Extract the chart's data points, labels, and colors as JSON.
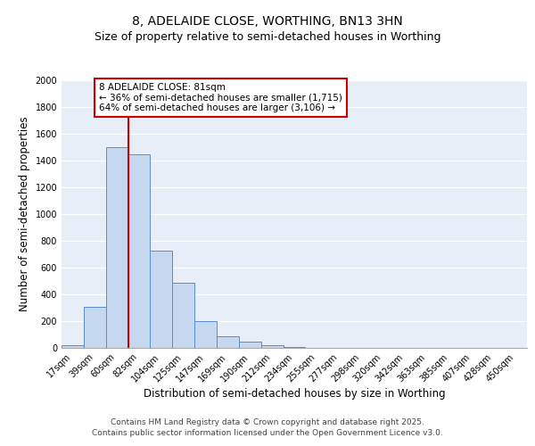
{
  "title_line1": "8, ADELAIDE CLOSE, WORTHING, BN13 3HN",
  "title_line2": "Size of property relative to semi-detached houses in Worthing",
  "xlabel": "Distribution of semi-detached houses by size in Worthing",
  "ylabel": "Number of semi-detached properties",
  "categories": [
    "17sqm",
    "39sqm",
    "60sqm",
    "82sqm",
    "104sqm",
    "125sqm",
    "147sqm",
    "169sqm",
    "190sqm",
    "212sqm",
    "234sqm",
    "255sqm",
    "277sqm",
    "298sqm",
    "320sqm",
    "342sqm",
    "363sqm",
    "385sqm",
    "407sqm",
    "428sqm",
    "450sqm"
  ],
  "values": [
    20,
    310,
    1500,
    1450,
    725,
    485,
    200,
    90,
    50,
    20,
    10,
    0,
    0,
    0,
    0,
    0,
    0,
    0,
    0,
    0,
    0
  ],
  "bar_color": "#c5d8f0",
  "bar_edge_color": "#5b8dc8",
  "vline_x_index": 2.5,
  "vline_color": "#cc0000",
  "annotation_text": "8 ADELAIDE CLOSE: 81sqm\n← 36% of semi-detached houses are smaller (1,715)\n64% of semi-detached houses are larger (3,106) →",
  "annotation_box_color": "#ffffff",
  "annotation_box_edge_color": "#cc0000",
  "ylim": [
    0,
    2000
  ],
  "yticks": [
    0,
    200,
    400,
    600,
    800,
    1000,
    1200,
    1400,
    1600,
    1800,
    2000
  ],
  "background_color": "#e8eef8",
  "grid_color": "#ffffff",
  "footer_line1": "Contains HM Land Registry data © Crown copyright and database right 2025.",
  "footer_line2": "Contains public sector information licensed under the Open Government Licence v3.0.",
  "title_fontsize": 10,
  "subtitle_fontsize": 9,
  "axis_label_fontsize": 8.5,
  "tick_fontsize": 7,
  "annotation_fontsize": 7.5,
  "footer_fontsize": 6.5
}
